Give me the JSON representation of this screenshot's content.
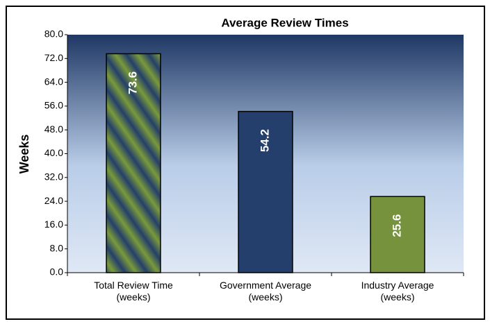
{
  "chart_data": {
    "type": "bar",
    "title": "Average Review Times",
    "y_label": "Weeks",
    "categories": [
      "Total Review Time\n(weeks)",
      "Government Average\n(weeks)",
      "Industry Average\n(weeks)"
    ],
    "values": [
      73.6,
      54.2,
      25.6
    ],
    "colors": [
      "#7a9a3a",
      "#243f6b",
      "#76923c"
    ],
    "striped": [
      true,
      false,
      false
    ],
    "stripe_color": "#243f6b",
    "ylim": [
      0,
      80
    ],
    "yticks": [
      {
        "value": 0,
        "label": "0.0"
      },
      {
        "value": 8,
        "label": "8.0"
      },
      {
        "value": 16,
        "label": "16.0"
      },
      {
        "value": 24,
        "label": "24.0"
      },
      {
        "value": 32,
        "label": "32.0"
      },
      {
        "value": 40,
        "label": "40.0"
      },
      {
        "value": 48,
        "label": "48.0"
      },
      {
        "value": 56,
        "label": "56.0"
      },
      {
        "value": 64,
        "label": "64.0"
      },
      {
        "value": 72,
        "label": "72.0"
      },
      {
        "value": 80,
        "label": "80.0"
      }
    ]
  }
}
